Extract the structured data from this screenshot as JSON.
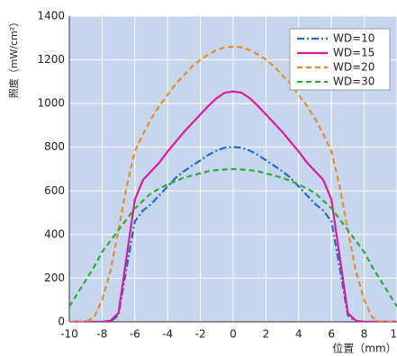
{
  "chart_data": {
    "type": "line",
    "xlabel": "位置（mm）",
    "ylabel": "照度（mW/cm²）",
    "x": [
      -10,
      -9.5,
      -9,
      -8.5,
      -8,
      -7.5,
      -7,
      -6.5,
      -6,
      -5.5,
      -5,
      -4.5,
      -4,
      -3.5,
      -3,
      -2.5,
      -2,
      -1.5,
      -1,
      -0.5,
      0,
      0.5,
      1,
      1.5,
      2,
      2.5,
      3,
      3.5,
      4,
      4.5,
      5,
      5.5,
      6,
      6.5,
      7,
      7.5,
      8,
      8.5,
      9,
      9.5,
      10
    ],
    "series": [
      {
        "name": "WD=10",
        "color": "#1f6cc4",
        "linestyle": "dashdot",
        "values": [
          0,
          0,
          0,
          0,
          0,
          0,
          30,
          250,
          460,
          510,
          540,
          580,
          620,
          660,
          690,
          715,
          740,
          765,
          785,
          798,
          800,
          798,
          785,
          765,
          740,
          715,
          690,
          660,
          620,
          580,
          540,
          510,
          460,
          250,
          30,
          0,
          0,
          0,
          0,
          0,
          0
        ]
      },
      {
        "name": "WD=15",
        "color": "#e0189a",
        "linestyle": "solid",
        "values": [
          0,
          0,
          0,
          0,
          0,
          5,
          40,
          300,
          560,
          650,
          690,
          730,
          780,
          825,
          870,
          910,
          950,
          990,
          1025,
          1050,
          1055,
          1050,
          1025,
          990,
          950,
          910,
          870,
          825,
          780,
          730,
          690,
          650,
          560,
          300,
          40,
          5,
          0,
          0,
          0,
          0,
          0
        ]
      },
      {
        "name": "WD=20",
        "color": "#f08a1e",
        "linestyle": "dashed",
        "values": [
          0,
          0,
          0,
          20,
          100,
          230,
          420,
          620,
          780,
          860,
          930,
          990,
          1040,
          1090,
          1130,
          1170,
          1200,
          1225,
          1245,
          1258,
          1260,
          1258,
          1245,
          1225,
          1200,
          1170,
          1130,
          1090,
          1040,
          990,
          930,
          860,
          780,
          620,
          420,
          230,
          100,
          20,
          0,
          0,
          0
        ]
      },
      {
        "name": "WD=30",
        "color": "#2eaa3a",
        "linestyle": "dashed",
        "values": [
          70,
          130,
          190,
          250,
          320,
          370,
          420,
          470,
          520,
          555,
          590,
          610,
          630,
          645,
          660,
          670,
          680,
          690,
          695,
          698,
          700,
          698,
          695,
          690,
          680,
          670,
          660,
          645,
          630,
          610,
          590,
          555,
          520,
          470,
          420,
          370,
          320,
          250,
          190,
          130,
          70
        ]
      }
    ],
    "xlim": [
      -10,
      10
    ],
    "xticks": [
      -10,
      -8,
      -6,
      -4,
      -2,
      0,
      2,
      4,
      6,
      8,
      10
    ],
    "ylim": [
      0,
      1400
    ],
    "yticks": [
      0,
      200,
      400,
      600,
      800,
      1000,
      1200,
      1400
    ],
    "grid": true,
    "legend": "upper right",
    "background": "#c6d6ee"
  }
}
